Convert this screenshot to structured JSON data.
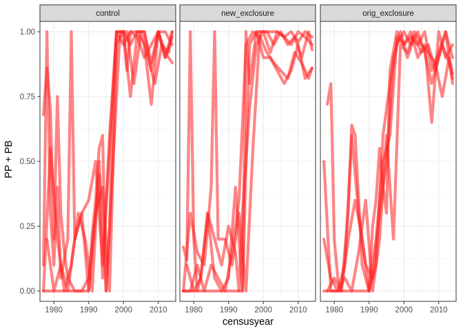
{
  "chart_data": {
    "type": "line",
    "xlabel": "censusyear",
    "ylabel": "PP + PB",
    "xlim": [
      1976,
      2015
    ],
    "ylim": [
      -0.04,
      1.04
    ],
    "x_ticks": [
      1980,
      1990,
      2000,
      2010
    ],
    "y_ticks": [
      0.0,
      0.25,
      0.5,
      0.75,
      1.0
    ],
    "y_tick_labels": [
      "0.00",
      "0.25",
      "0.50",
      "0.75",
      "1.00"
    ],
    "grid": true,
    "legend": "none",
    "line_color": "#ff2020",
    "line_opacity": 0.55,
    "panel_header_color": "#d9d9d9",
    "panels": [
      {
        "name": "control",
        "series": [
          {
            "x": [
              1977,
              1978,
              1979,
              1980,
              1982,
              1984,
              1986,
              1988,
              1990,
              1991,
              1992,
              1993,
              1994,
              1995,
              1996,
              1997,
              1998,
              1999,
              2000,
              2001,
              2002,
              2004,
              2006,
              2008,
              2010,
              2012,
              2014
            ],
            "y": [
              0.0,
              0.0,
              0.0,
              0.0,
              0.0,
              0.0,
              0.0,
              0.0,
              0.0,
              0.22,
              0.35,
              0.55,
              0.6,
              0.0,
              0.25,
              0.7,
              1.0,
              1.0,
              1.0,
              0.85,
              1.0,
              1.0,
              1.0,
              0.85,
              1.0,
              1.0,
              0.95
            ]
          },
          {
            "x": [
              1977,
              1978,
              1979,
              1980,
              1981,
              1982,
              1983,
              1984,
              1986,
              1988,
              1990,
              1992,
              1994,
              1996,
              1998,
              2000,
              2002,
              2004,
              2006,
              2008,
              2010,
              2012,
              2014
            ],
            "y": [
              0.68,
              0.86,
              0.7,
              0.2,
              0.75,
              0.3,
              0.15,
              0.05,
              0.0,
              0.0,
              0.05,
              0.3,
              0.4,
              0.0,
              0.95,
              1.0,
              0.75,
              1.0,
              0.95,
              0.72,
              1.0,
              0.9,
              1.0
            ]
          },
          {
            "x": [
              1977,
              1978,
              1979,
              1980,
              1981,
              1982,
              1984,
              1985,
              1986,
              1988,
              1990,
              1992,
              1994,
              1996,
              1998,
              2000,
              2002,
              2004,
              2006,
              2008,
              2010,
              2012,
              2014
            ],
            "y": [
              0.1,
              1.0,
              0.3,
              0.1,
              0.4,
              0.05,
              0.2,
              1.0,
              0.2,
              0.3,
              0.35,
              0.5,
              0.1,
              0.55,
              1.0,
              0.95,
              1.0,
              0.98,
              0.9,
              0.95,
              1.0,
              0.9,
              0.98
            ]
          },
          {
            "x": [
              1977,
              1979,
              1981,
              1983,
              1985,
              1987,
              1989,
              1991,
              1993,
              1995,
              1997,
              1999,
              2001,
              2003,
              2005,
              2007,
              2009,
              2011,
              2013,
              2014
            ],
            "y": [
              0.0,
              0.55,
              0.2,
              0.0,
              0.1,
              0.3,
              0.2,
              0.0,
              0.5,
              0.0,
              0.5,
              1.0,
              1.0,
              0.8,
              1.0,
              0.9,
              0.8,
              0.95,
              0.92,
              1.0
            ]
          },
          {
            "x": [
              1978,
              1980,
              1982,
              1984,
              1986,
              1988,
              1990,
              1992,
              1993,
              1994,
              1996,
              1998,
              2000,
              2002,
              2004,
              2006,
              2008,
              2010,
              2012,
              2014
            ],
            "y": [
              0.2,
              0.0,
              0.1,
              0.0,
              0.2,
              0.3,
              0.0,
              0.3,
              0.45,
              0.05,
              0.6,
              1.0,
              1.0,
              0.95,
              1.0,
              1.0,
              0.88,
              1.0,
              0.92,
              0.88
            ]
          }
        ]
      },
      {
        "name": "new_exclosure",
        "series": [
          {
            "x": [
              1977,
              1978,
              1979,
              1980,
              1982,
              1984,
              1986,
              1988,
              1990,
              1992,
              1993,
              1994,
              1995,
              1996,
              1998,
              2000,
              2002,
              2004,
              2006,
              2008,
              2010,
              2012,
              2014
            ],
            "y": [
              0.0,
              0.0,
              0.0,
              0.0,
              0.0,
              0.0,
              0.0,
              0.0,
              0.0,
              0.0,
              0.0,
              0.0,
              1.0,
              0.8,
              1.0,
              1.0,
              1.0,
              1.0,
              0.98,
              0.95,
              1.0,
              0.98,
              0.95
            ]
          },
          {
            "x": [
              1977,
              1978,
              1979,
              1980,
              1981,
              1982,
              1984,
              1986,
              1988,
              1990,
              1992,
              1994,
              1996,
              1998,
              2000,
              2002,
              2004,
              2006,
              2008,
              2010,
              2012,
              2014
            ],
            "y": [
              0.17,
              0.12,
              1.0,
              0.2,
              0.0,
              0.05,
              0.3,
              0.05,
              0.0,
              0.05,
              0.4,
              0.0,
              0.95,
              1.0,
              0.9,
              0.9,
              0.85,
              0.8,
              0.85,
              0.95,
              0.82,
              0.86
            ]
          },
          {
            "x": [
              1977,
              1979,
              1981,
              1983,
              1985,
              1986,
              1987,
              1989,
              1991,
              1993,
              1995,
              1997,
              1999,
              2001,
              2003,
              2005,
              2007,
              2009,
              2011,
              2013,
              2014
            ],
            "y": [
              0.0,
              0.3,
              0.15,
              0.1,
              0.4,
              1.0,
              0.2,
              0.2,
              0.1,
              0.3,
              0.0,
              0.55,
              1.0,
              1.0,
              0.95,
              1.0,
              0.95,
              0.98,
              0.9,
              1.0,
              0.93
            ]
          },
          {
            "x": [
              1978,
              1980,
              1982,
              1984,
              1986,
              1988,
              1990,
              1992,
              1993,
              1994,
              1996,
              1998,
              2000,
              2002,
              2004,
              2006,
              2008,
              2010,
              2012,
              2014
            ],
            "y": [
              0.1,
              0.0,
              0.05,
              0.3,
              0.2,
              0.1,
              0.25,
              0.15,
              0.0,
              0.3,
              0.7,
              0.95,
              1.0,
              0.92,
              1.0,
              0.98,
              1.0,
              0.96,
              1.0,
              0.98
            ]
          },
          {
            "x": [
              1977,
              1979,
              1981,
              1983,
              1985,
              1987,
              1989,
              1991,
              1993,
              1995,
              1997,
              1999,
              2001,
              2003,
              2005,
              2007,
              2009,
              2011,
              2013,
              2014
            ],
            "y": [
              0.0,
              0.0,
              0.1,
              0.0,
              0.1,
              0.05,
              0.0,
              0.15,
              0.35,
              0.95,
              1.0,
              0.98,
              0.92,
              0.88,
              0.85,
              0.82,
              0.92,
              0.88,
              0.82,
              0.86
            ]
          }
        ]
      },
      {
        "name": "orig_exclosure",
        "series": [
          {
            "x": [
              1977,
              1978,
              1979,
              1980,
              1982,
              1984,
              1986,
              1988,
              1990,
              1991,
              1992,
              1993,
              1994,
              1995,
              1996,
              1998,
              2000,
              2002,
              2004,
              2006,
              2008,
              2010,
              2012,
              2014
            ],
            "y": [
              0.5,
              0.25,
              0.0,
              0.0,
              0.0,
              0.0,
              0.0,
              0.0,
              0.0,
              0.25,
              0.35,
              0.55,
              0.4,
              0.3,
              0.85,
              1.0,
              0.95,
              0.98,
              0.95,
              1.0,
              0.85,
              0.92,
              1.0,
              0.8
            ]
          },
          {
            "x": [
              1978,
              1979,
              1980,
              1981,
              1982,
              1984,
              1985,
              1986,
              1988,
              1990,
              1992,
              1994,
              1996,
              1998,
              2000,
              2002,
              2004,
              2006,
              2008,
              2010,
              2012,
              2014
            ],
            "y": [
              0.72,
              0.8,
              0.2,
              0.05,
              0.0,
              0.3,
              0.64,
              0.6,
              0.1,
              0.0,
              0.2,
              0.5,
              0.6,
              0.98,
              0.95,
              1.0,
              0.9,
              0.95,
              0.65,
              1.0,
              0.9,
              0.95
            ]
          },
          {
            "x": [
              1977,
              1979,
              1981,
              1983,
              1985,
              1987,
              1989,
              1991,
              1993,
              1995,
              1997,
              1999,
              2001,
              2003,
              2005,
              2007,
              2009,
              2011,
              2013,
              2014
            ],
            "y": [
              0.2,
              0.05,
              0.0,
              0.1,
              0.6,
              0.3,
              0.1,
              0.05,
              0.3,
              0.5,
              0.9,
              1.0,
              0.9,
              0.98,
              0.92,
              0.95,
              0.85,
              0.95,
              0.88,
              0.82
            ]
          },
          {
            "x": [
              1978,
              1980,
              1982,
              1984,
              1986,
              1988,
              1990,
              1991,
              1992,
              1994,
              1996,
              1998,
              2000,
              2002,
              2004,
              2006,
              2008,
              2010,
              2012,
              2014
            ],
            "y": [
              0.0,
              0.05,
              0.0,
              0.2,
              0.35,
              0.2,
              0.0,
              0.05,
              0.1,
              0.6,
              0.8,
              0.95,
              1.0,
              0.95,
              1.0,
              0.92,
              0.8,
              0.9,
              1.0,
              0.9
            ]
          },
          {
            "x": [
              1977,
              1979,
              1981,
              1983,
              1985,
              1987,
              1989,
              1991,
              1993,
              1995,
              1997,
              1999,
              2001,
              2003,
              2005,
              2007,
              2009,
              2011,
              2013,
              2014
            ],
            "y": [
              0.0,
              0.0,
              0.0,
              0.05,
              0.0,
              0.15,
              0.35,
              0.0,
              0.2,
              0.6,
              0.2,
              0.95,
              0.92,
              1.0,
              0.95,
              0.92,
              0.88,
              0.75,
              0.9,
              0.84
            ]
          }
        ]
      }
    ]
  }
}
